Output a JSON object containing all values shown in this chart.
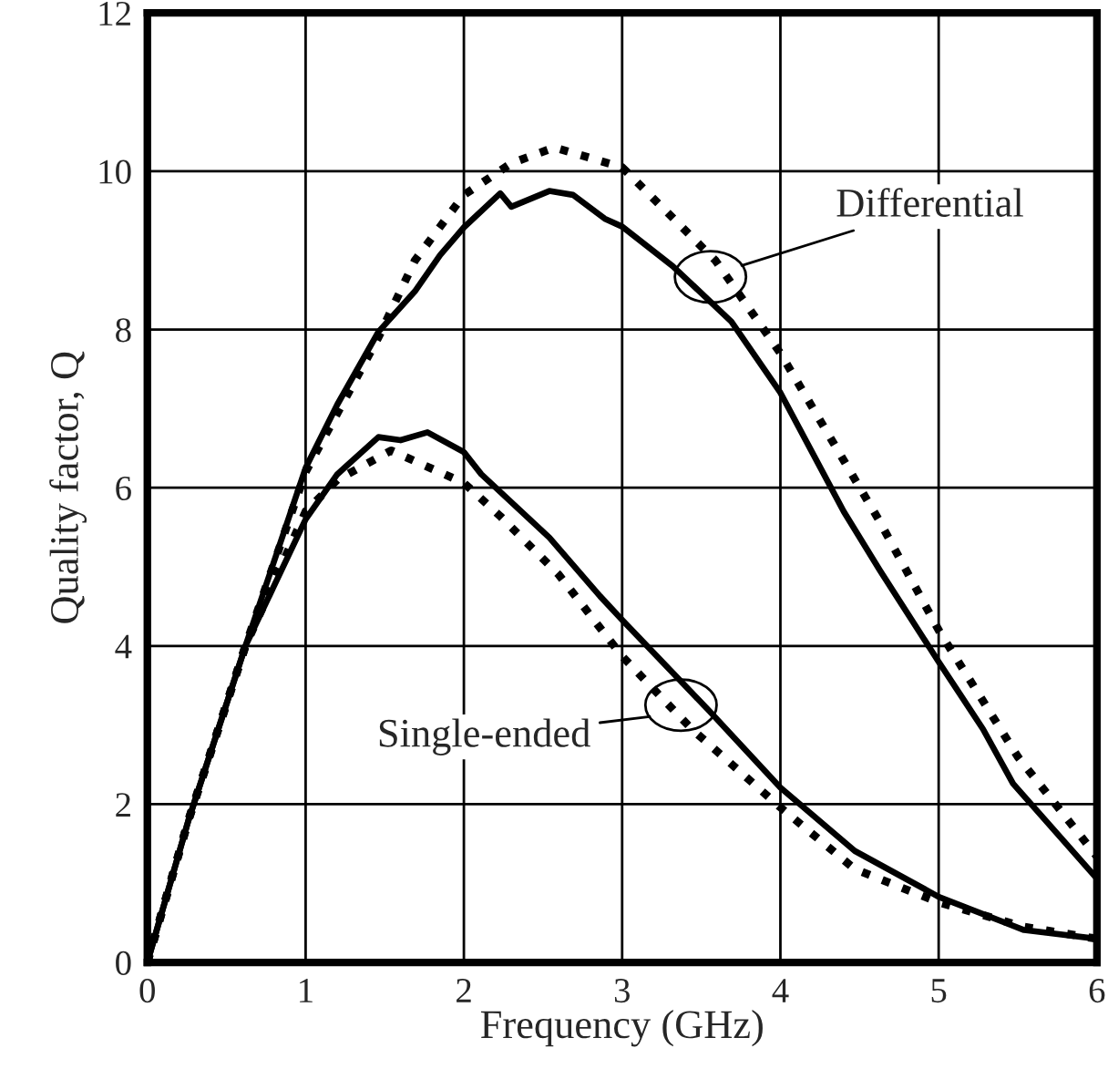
{
  "chart_data": {
    "type": "line",
    "xlabel": "Frequency (GHz)",
    "ylabel": "Quality factor, Q",
    "xlim": [
      0,
      6
    ],
    "ylim": [
      0,
      12
    ],
    "xticks": [
      0,
      1,
      2,
      3,
      4,
      5,
      6
    ],
    "yticks": [
      0,
      2,
      4,
      6,
      8,
      10,
      12
    ],
    "grid": true,
    "marker": "none",
    "series": [
      {
        "color": "#000000",
        "line_style": "solid",
        "x": [
          0,
          0.26,
          0.62,
          1.0,
          1.2,
          1.46,
          1.69,
          1.85,
          2.0,
          2.23,
          2.3,
          2.54,
          2.69,
          2.89,
          3.0,
          3.32,
          3.69,
          4.0,
          4.4,
          4.63,
          5.0,
          5.28,
          5.47,
          6.0
        ],
        "values": [
          0,
          1.8,
          4.0,
          6.25,
          7.05,
          7.97,
          8.48,
          8.94,
          9.29,
          9.72,
          9.55,
          9.75,
          9.7,
          9.4,
          9.3,
          8.8,
          8.1,
          7.2,
          5.7,
          4.95,
          3.8,
          2.95,
          2.26,
          1.06
        ]
      },
      {
        "color": "#000000",
        "line_style": "dotted",
        "x": [
          0,
          0.26,
          0.62,
          1.0,
          1.46,
          1.69,
          2.0,
          2.3,
          2.57,
          3.0,
          3.59,
          4.0,
          4.62,
          5.0,
          5.5,
          6.0
        ],
        "values": [
          0,
          1.8,
          4.0,
          6.2,
          7.9,
          8.87,
          9.7,
          10.1,
          10.3,
          10.05,
          8.87,
          7.7,
          5.6,
          4.2,
          2.6,
          1.34
        ]
      },
      {
        "color": "#000000",
        "line_style": "solid",
        "x": [
          0,
          0.26,
          0.62,
          1.0,
          1.2,
          1.46,
          1.6,
          1.77,
          2.0,
          2.11,
          2.54,
          2.86,
          3.0,
          3.55,
          4.0,
          4.47,
          5.0,
          5.54,
          6.0
        ],
        "values": [
          0,
          1.8,
          4.0,
          5.6,
          6.17,
          6.64,
          6.6,
          6.7,
          6.45,
          6.17,
          5.37,
          4.63,
          4.33,
          3.18,
          2.21,
          1.41,
          0.83,
          0.41,
          0.3
        ]
      },
      {
        "color": "#000000",
        "line_style": "dotted",
        "x": [
          0,
          0.26,
          0.62,
          1.0,
          1.2,
          1.54,
          2.0,
          2.23,
          2.6,
          3.0,
          3.44,
          4.0,
          4.47,
          5.0,
          5.54,
          6.0
        ],
        "values": [
          0,
          1.8,
          4.0,
          5.7,
          6.1,
          6.47,
          6.06,
          5.64,
          4.9,
          3.87,
          2.95,
          1.96,
          1.18,
          0.76,
          0.45,
          0.3
        ]
      }
    ],
    "annotations": [
      "Differential",
      "Single-ended"
    ]
  }
}
